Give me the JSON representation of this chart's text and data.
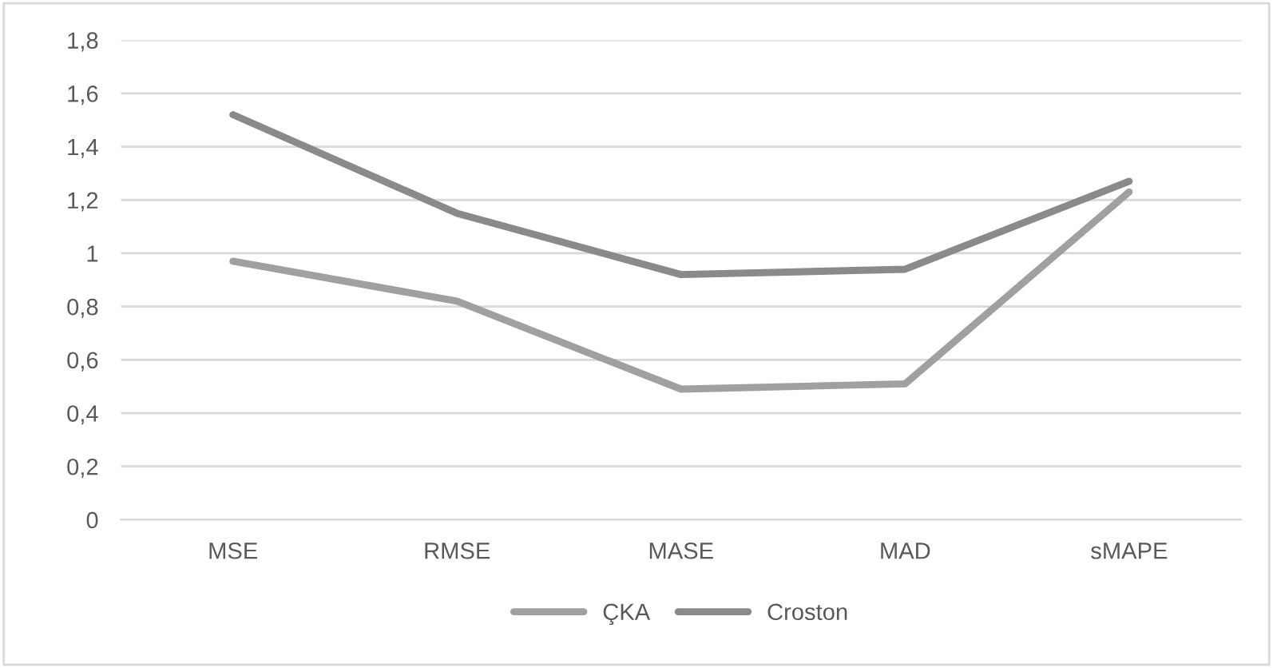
{
  "chart_data": {
    "type": "line",
    "categories": [
      "MSE",
      "RMSE",
      "MASE",
      "MAD",
      "sMAPE"
    ],
    "series": [
      {
        "name": "ÇKA",
        "color": "#a0a0a0",
        "values": [
          0.97,
          0.82,
          0.49,
          0.51,
          1.23
        ]
      },
      {
        "name": "Croston",
        "color": "#8a8a8a",
        "values": [
          1.52,
          1.15,
          0.92,
          0.94,
          1.27
        ]
      }
    ],
    "ylim": [
      0,
      1.8
    ],
    "yticks": [
      0,
      {
        "value": 0.2,
        "label": "0,2"
      },
      {
        "value": 0.4,
        "label": "0,4"
      },
      {
        "value": 0.6,
        "label": "0,6"
      },
      {
        "value": 0.8,
        "label": "0,8"
      },
      1,
      {
        "value": 1.2,
        "label": "1,2"
      },
      {
        "value": 1.4,
        "label": "1,4"
      },
      {
        "value": 1.6,
        "label": "1,6"
      },
      {
        "value": 1.8,
        "label": "1,8"
      }
    ],
    "grid": "y",
    "legend": "bottom",
    "marker": "none",
    "line_style": "solid"
  }
}
